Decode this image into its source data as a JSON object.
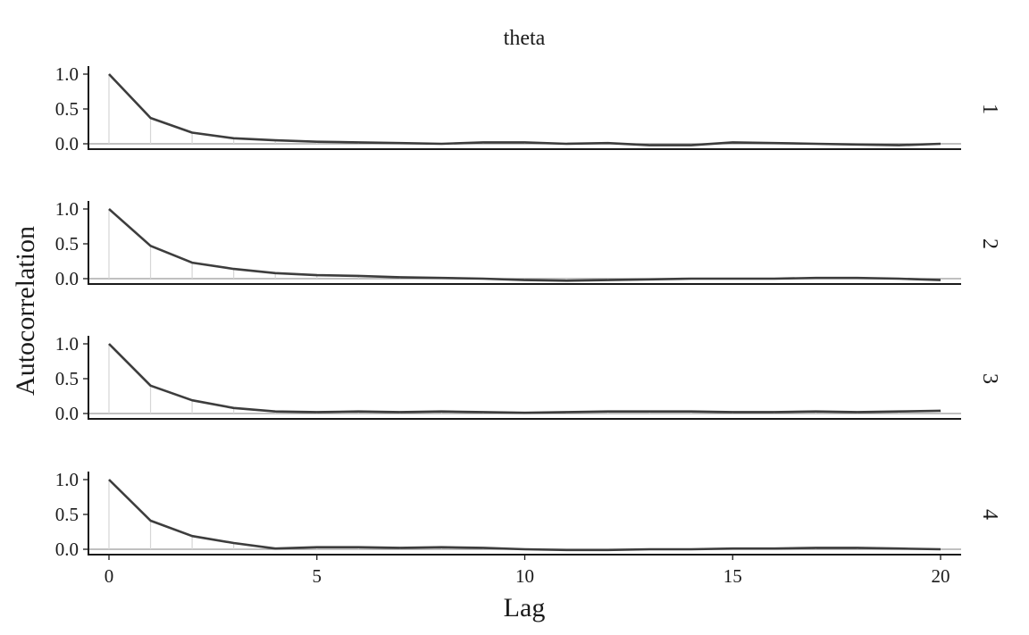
{
  "chart_data": {
    "type": "line",
    "title": "theta",
    "xlabel": "Lag",
    "ylabel": "Autocorrelation",
    "x": [
      0,
      1,
      2,
      3,
      4,
      5,
      6,
      7,
      8,
      9,
      10,
      11,
      12,
      13,
      14,
      15,
      16,
      17,
      18,
      19,
      20
    ],
    "x_ticks": [
      "0",
      "5",
      "10",
      "15",
      "20"
    ],
    "y_ticks": [
      "0.0",
      "0.5",
      "1.0"
    ],
    "xlim": [
      0,
      20
    ],
    "ylim": [
      0,
      1
    ],
    "grid": false,
    "facets": [
      {
        "strip": "1",
        "values": [
          1.0,
          0.37,
          0.16,
          0.08,
          0.05,
          0.03,
          0.02,
          0.01,
          0.0,
          0.02,
          0.02,
          0.0,
          0.01,
          -0.02,
          -0.02,
          0.02,
          0.01,
          0.0,
          -0.01,
          -0.02,
          0.0
        ]
      },
      {
        "strip": "2",
        "values": [
          1.0,
          0.47,
          0.23,
          0.14,
          0.08,
          0.05,
          0.04,
          0.02,
          0.01,
          0.0,
          -0.02,
          -0.03,
          -0.02,
          -0.01,
          0.0,
          0.0,
          0.0,
          0.01,
          0.01,
          0.0,
          -0.02
        ]
      },
      {
        "strip": "3",
        "values": [
          1.0,
          0.4,
          0.19,
          0.08,
          0.03,
          0.02,
          0.03,
          0.02,
          0.03,
          0.02,
          0.01,
          0.02,
          0.03,
          0.03,
          0.03,
          0.02,
          0.02,
          0.03,
          0.02,
          0.03,
          0.04
        ]
      },
      {
        "strip": "4",
        "values": [
          1.0,
          0.41,
          0.19,
          0.09,
          0.01,
          0.03,
          0.03,
          0.02,
          0.03,
          0.02,
          0.0,
          -0.01,
          -0.01,
          0.0,
          0.0,
          0.01,
          0.01,
          0.02,
          0.02,
          0.01,
          0.0
        ]
      }
    ]
  }
}
